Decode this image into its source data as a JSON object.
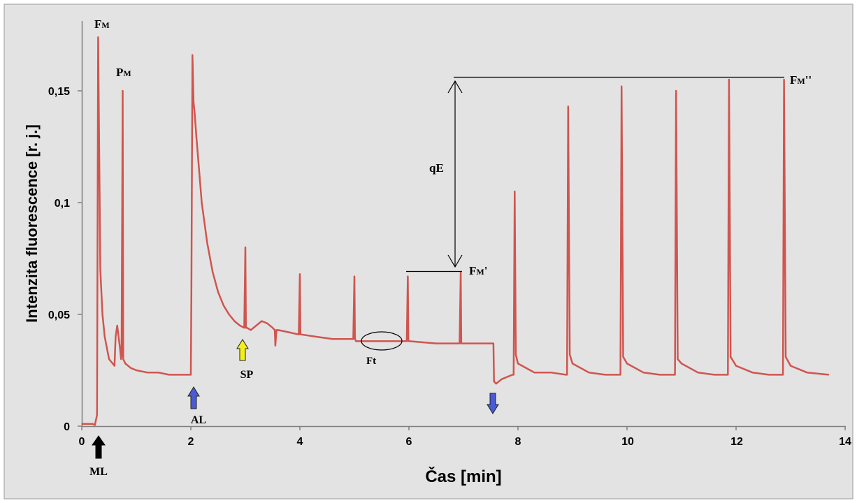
{
  "chart_data": {
    "type": "line",
    "title": "",
    "xlabel": "Čas [min]",
    "ylabel": "Intenzita fluorescence [r. j.]",
    "xlim": [
      0,
      14
    ],
    "ylim": [
      0,
      0.18
    ],
    "x_ticks": [
      0,
      2,
      4,
      6,
      8,
      10,
      12,
      14
    ],
    "x_tick_labels": [
      "0",
      "2",
      "4",
      "6",
      "8",
      "10",
      "12",
      "14"
    ],
    "y_ticks": [
      0,
      0.05,
      0.1,
      0.15
    ],
    "y_tick_labels": [
      "0",
      "0,05",
      "0,1",
      "0,15"
    ],
    "grid": false,
    "line_color": "#d0554f",
    "background_color": "#e3e3e3",
    "series": [
      {
        "name": "",
        "x": [
          0,
          0.2,
          0.24,
          0.28,
          0.3,
          0.32,
          0.34,
          0.38,
          0.42,
          0.5,
          0.6,
          0.62,
          0.65,
          0.7,
          0.72,
          0.73,
          0.75,
          0.76,
          0.8,
          0.9,
          1.0,
          1.2,
          1.4,
          1.6,
          1.8,
          2.0,
          2.01,
          2.03,
          2.05,
          2.07,
          2.1,
          2.15,
          2.2,
          2.3,
          2.4,
          2.5,
          2.6,
          2.7,
          2.8,
          2.9,
          2.98,
          3.0,
          3.01,
          3.03,
          3.1,
          3.2,
          3.3,
          3.4,
          3.5,
          3.54,
          3.55,
          3.57,
          3.6,
          3.8,
          3.98,
          4.0,
          4.01,
          4.03,
          4.3,
          4.6,
          4.98,
          5.0,
          5.01,
          5.03,
          5.5,
          5.96,
          5.98,
          5.99,
          6.01,
          6.5,
          6.93,
          6.95,
          6.96,
          6.98,
          7.2,
          7.5,
          7.55,
          7.56,
          7.6,
          7.7,
          7.9,
          7.92,
          7.94,
          7.96,
          8.0,
          8.3,
          8.6,
          8.88,
          8.9,
          8.92,
          8.95,
          9.0,
          9.3,
          9.6,
          9.86,
          9.88,
          9.9,
          9.93,
          10.0,
          10.3,
          10.6,
          10.86,
          10.88,
          10.9,
          10.93,
          11.0,
          11.3,
          11.6,
          11.83,
          11.85,
          11.87,
          11.9,
          12.0,
          12.3,
          12.6,
          12.84,
          12.86,
          12.88,
          12.91,
          13.0,
          13.3,
          13.7
        ],
        "y": [
          0.001,
          0.001,
          0.0005,
          0.005,
          0.174,
          0.12,
          0.07,
          0.05,
          0.04,
          0.03,
          0.027,
          0.04,
          0.045,
          0.035,
          0.03,
          0.032,
          0.15,
          0.03,
          0.028,
          0.026,
          0.025,
          0.024,
          0.024,
          0.023,
          0.023,
          0.023,
          0.06,
          0.166,
          0.145,
          0.14,
          0.13,
          0.115,
          0.1,
          0.082,
          0.069,
          0.06,
          0.054,
          0.05,
          0.047,
          0.045,
          0.044,
          0.08,
          0.044,
          0.044,
          0.043,
          0.045,
          0.047,
          0.046,
          0.044,
          0.043,
          0.036,
          0.043,
          0.043,
          0.042,
          0.041,
          0.068,
          0.041,
          0.041,
          0.04,
          0.039,
          0.039,
          0.067,
          0.039,
          0.038,
          0.038,
          0.038,
          0.067,
          0.038,
          0.038,
          0.037,
          0.037,
          0.069,
          0.037,
          0.037,
          0.037,
          0.037,
          0.037,
          0.02,
          0.019,
          0.021,
          0.023,
          0.023,
          0.105,
          0.032,
          0.028,
          0.024,
          0.024,
          0.023,
          0.023,
          0.143,
          0.032,
          0.028,
          0.024,
          0.023,
          0.023,
          0.023,
          0.152,
          0.031,
          0.028,
          0.024,
          0.023,
          0.023,
          0.023,
          0.15,
          0.03,
          0.028,
          0.024,
          0.023,
          0.023,
          0.023,
          0.155,
          0.031,
          0.027,
          0.024,
          0.023,
          0.023,
          0.023,
          0.155,
          0.031,
          0.027,
          0.024,
          0.023
        ]
      }
    ],
    "annotations": {
      "fm_label": "F",
      "fm_sub": "M",
      "pm_label": "P",
      "pm_sub": "M",
      "fmp_label": "F",
      "fmp_sub": "M",
      "fmp_suffix": "'",
      "fmpp_label": "F",
      "fmpp_sub": "M",
      "fmpp_suffix": "''",
      "qe_label": "qE",
      "ft_label": "Ft",
      "ml_label": "ML",
      "al_label": "AL",
      "sp_label": "SP"
    },
    "arrow_colors": {
      "ml": "#000000",
      "al": "#4a5bd6",
      "sp": "#f2ef1b",
      "off": "#4a5bd6"
    }
  }
}
